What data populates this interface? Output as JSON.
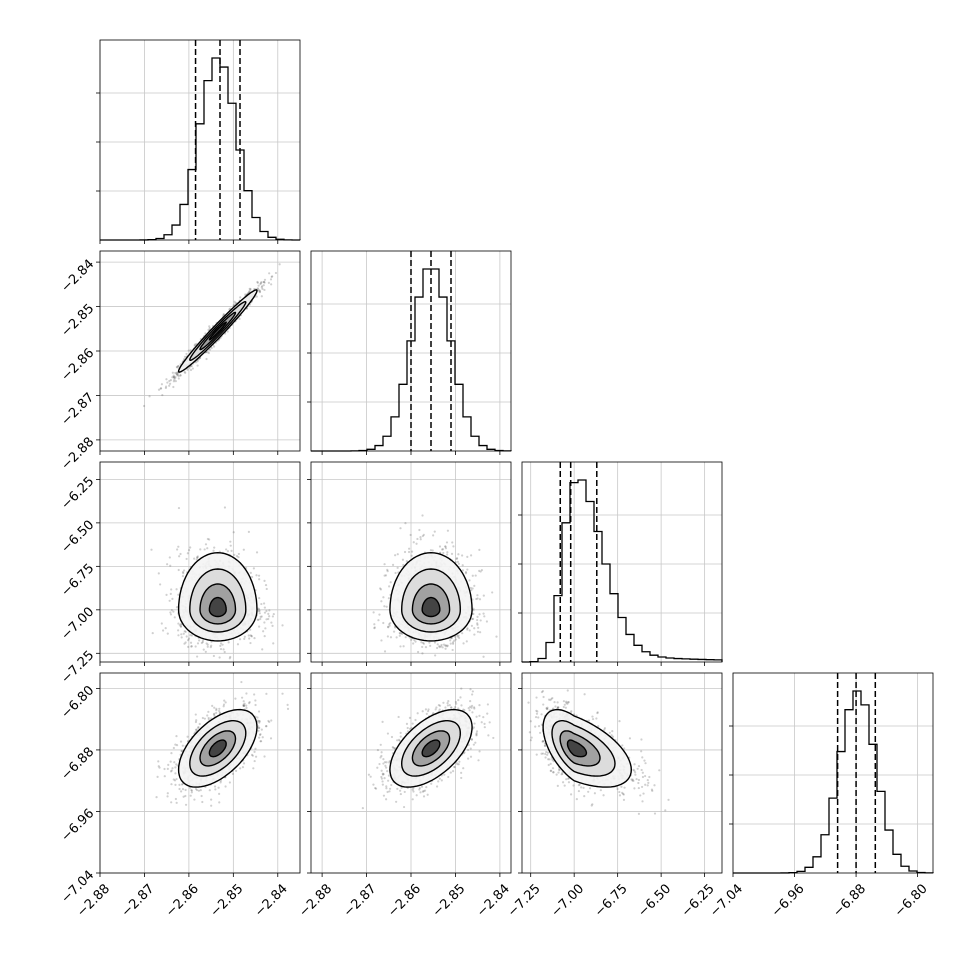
{
  "chart_data": {
    "type": "corner",
    "dimensions": 4,
    "grid": true,
    "quantile_lines": "dashed",
    "contours": true,
    "axes": [
      {
        "name": "",
        "range": [
          -2.88,
          -2.835
        ],
        "ticks": [
          -2.88,
          -2.87,
          -2.86,
          -2.85,
          -2.84
        ],
        "tick_labels": [
          "−2.88",
          "−2.87",
          "−2.86",
          "−2.85",
          "−2.84"
        ],
        "mean": -2.8535,
        "sd": 0.0042,
        "skew": 0,
        "quantiles": [
          -2.8585,
          -2.853,
          -2.8485
        ]
      },
      {
        "name": "",
        "range": [
          -2.8825,
          -2.8375
        ],
        "ticks": [
          -2.88,
          -2.87,
          -2.86,
          -2.85,
          -2.84
        ],
        "tick_labels": [
          "−2.88",
          "−2.87",
          "−2.86",
          "−2.85",
          "−2.84"
        ],
        "mean": -2.8555,
        "sd": 0.0044,
        "skew": 0,
        "quantiles": [
          -2.86,
          -2.8555,
          -2.851
        ]
      },
      {
        "name": "",
        "range": [
          -7.3,
          -6.15
        ],
        "ticks": [
          -7.25,
          -7.0,
          -6.75,
          -6.5,
          -6.25
        ],
        "tick_labels": [
          "−7.25",
          "−7.00",
          "−6.75",
          "−6.50",
          "−6.25"
        ],
        "mean": -7.0,
        "sd": 0.085,
        "skew": 0.28,
        "quantiles": [
          -7.08,
          -7.02,
          -6.87
        ]
      },
      {
        "name": "",
        "range": [
          -7.04,
          -6.78
        ],
        "ticks": [
          -7.04,
          -6.96,
          -6.88,
          -6.8
        ],
        "tick_labels": [
          "−7.04",
          "−6.96",
          "−6.88",
          "−6.80"
        ],
        "mean": -6.878,
        "sd": 0.024,
        "skew": 0,
        "quantiles": [
          -6.904,
          -6.88,
          -6.855
        ]
      }
    ],
    "correlations": {
      "0-1": 0.98,
      "0-2": 0.0,
      "1-2": 0.0,
      "0-3": 0.55,
      "1-3": 0.55,
      "2-3": -0.55
    }
  }
}
